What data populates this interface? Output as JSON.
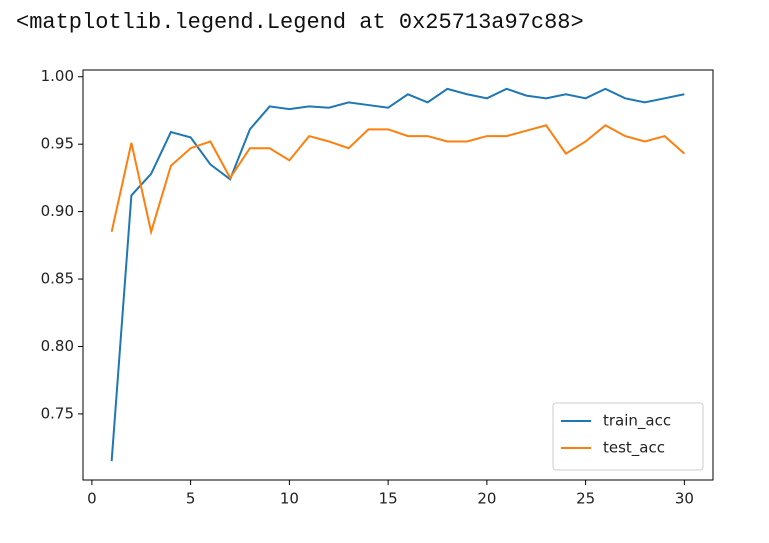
{
  "output_text": "<matplotlib.legend.Legend at 0x25713a97c88>",
  "chart_data": {
    "type": "line",
    "x": [
      1,
      2,
      3,
      4,
      5,
      6,
      7,
      8,
      9,
      10,
      11,
      12,
      13,
      14,
      15,
      16,
      17,
      18,
      19,
      20,
      21,
      22,
      23,
      24,
      25,
      26,
      27,
      28,
      29,
      30
    ],
    "series": [
      {
        "name": "train_acc",
        "color": "#1f77b4",
        "values": [
          0.715,
          0.912,
          0.928,
          0.959,
          0.955,
          0.935,
          0.924,
          0.961,
          0.978,
          0.976,
          0.978,
          0.977,
          0.981,
          0.979,
          0.977,
          0.987,
          0.981,
          0.991,
          0.987,
          0.984,
          0.991,
          0.986,
          0.984,
          0.987,
          0.984,
          0.991,
          0.984,
          0.981,
          0.984,
          0.987
        ]
      },
      {
        "name": "test_acc",
        "color": "#ff7f0e",
        "values": [
          0.885,
          0.951,
          0.885,
          0.934,
          0.947,
          0.952,
          0.925,
          0.947,
          0.947,
          0.938,
          0.956,
          0.952,
          0.947,
          0.961,
          0.961,
          0.956,
          0.956,
          0.952,
          0.952,
          0.956,
          0.956,
          0.96,
          0.964,
          0.943,
          0.952,
          0.964,
          0.956,
          0.952,
          0.956,
          0.943
        ]
      }
    ],
    "xlim": [
      -0.45,
      31.45
    ],
    "xticks": [
      0,
      5,
      10,
      15,
      20,
      25,
      30
    ],
    "ylim": [
      0.701,
      1.005
    ],
    "yticks": [
      {
        "value": 0.75,
        "label": "0.75"
      },
      {
        "value": 0.8,
        "label": "0.80"
      },
      0.85,
      {
        "value": 0.9,
        "label": "0.90"
      },
      0.95,
      {
        "value": 1,
        "label": "1.00"
      }
    ],
    "legend": "lower right",
    "grid": false
  }
}
